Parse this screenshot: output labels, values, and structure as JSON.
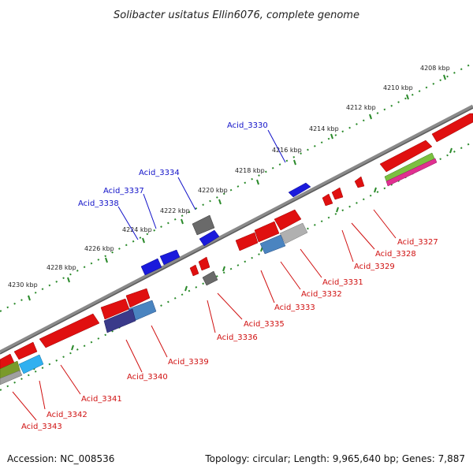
{
  "title": "Solibacter usitatus Ellin6076, complete genome",
  "accession": "Accession: NC_008536",
  "summary": "Topology: circular; Length: 9,965,640 bp; Genes: 7,887",
  "ticks": [
    "4208 kbp",
    "4210 kbp",
    "4212 kbp",
    "4214 kbp",
    "4216 kbp",
    "4218 kbp",
    "4220 kbp",
    "4222 kbp",
    "4224 kbp",
    "4226 kbp",
    "4228 kbp",
    "4230 kbp"
  ],
  "genes_top": [
    "Acid_3330",
    "Acid_3334",
    "Acid_3337",
    "Acid_3338"
  ],
  "genes_bottom": [
    "Acid_3327",
    "Acid_3328",
    "Acid_3329",
    "Acid_3331",
    "Acid_3332",
    "Acid_3333",
    "Acid_3335",
    "Acid_3336",
    "Acid_3339",
    "Acid_3340",
    "Acid_3341",
    "Acid_3342",
    "Acid_3343"
  ],
  "colors": {
    "forward_strand": "#1a1adc",
    "reverse_strand": "#e01010",
    "backbone": "#707070",
    "tick_dots": "#2a8a2a",
    "label_top": "#1010c8",
    "label_bottom": "#d01010"
  }
}
